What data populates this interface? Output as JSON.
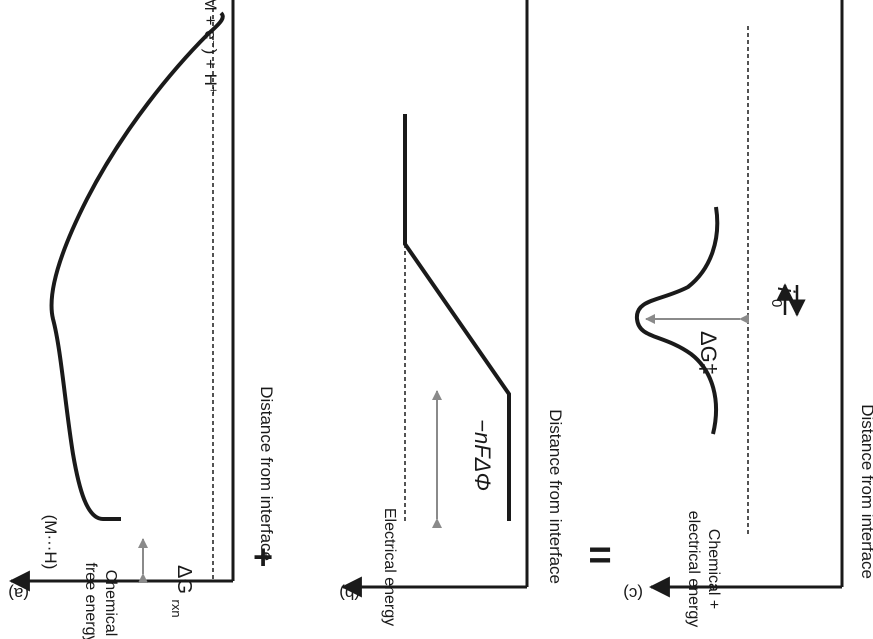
{
  "colors": {
    "ink": "#1a1a1a",
    "guide": "#8a8a8a",
    "background": "#ffffff"
  },
  "panels": [
    {
      "id": "a",
      "label": "(a)",
      "y_axis_label_line1": "Chemical",
      "y_axis_label_line2": "free energy",
      "x_axis_label": "Distance from interface",
      "start_state": "(M···H)",
      "end_state": "(M + e⁻) + H⁺",
      "delta_main": "ΔG",
      "delta_sub": "rxn"
    },
    {
      "id": "b",
      "label": "(b)",
      "y_axis_label": "Electrical energy",
      "x_axis_label": "Distance from interface",
      "delta_label": "−nFΔΦ"
    },
    {
      "id": "c",
      "label": "(c)",
      "y_axis_label_line1": "Chemical +",
      "y_axis_label_line2": "electrical energy",
      "x_axis_label": "Distance from interface",
      "delta_label": "ΔG‡",
      "current_main": "i",
      "current_sub": "0"
    }
  ],
  "operators": {
    "plus": "+",
    "equals": "="
  }
}
